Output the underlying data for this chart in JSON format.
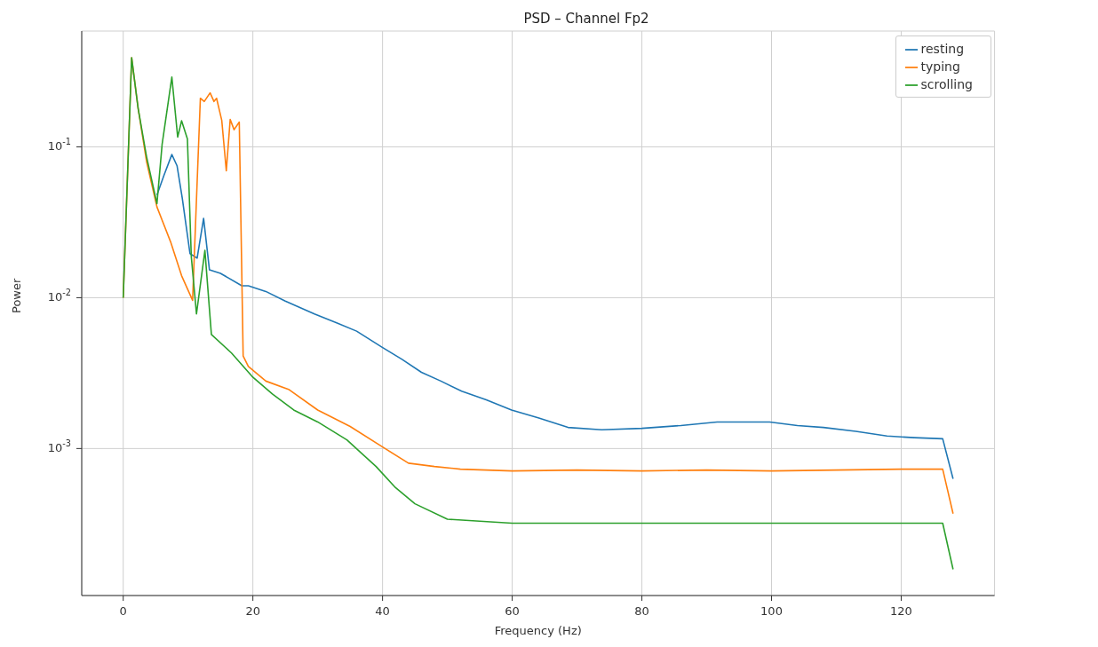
{
  "chart_data": {
    "type": "line",
    "title": "PSD – Channel Fp2",
    "xlabel": "Frequency (Hz)",
    "ylabel": "Power",
    "log": "y",
    "grid": true,
    "legend": "top right",
    "xlim": [
      -6.4,
      134.4
    ],
    "xticks": [
      0,
      20,
      40,
      60,
      80,
      100,
      120
    ],
    "ylim": [
      0.000106,
      0.586
    ],
    "yticks": [
      {
        "value": 0.001,
        "label": "10$^{-3}$"
      },
      {
        "value": 0.01,
        "label": "10$^{-2}$"
      },
      {
        "value": 0.1,
        "label": "10$^{-1}$"
      }
    ],
    "series": [
      {
        "name": "resting",
        "color": "#1f77b4",
        "x": [
          5.2,
          6.3,
          7.5,
          8.3,
          9.1,
          10.3,
          11.4,
          12.4,
          13.3,
          15,
          18.3,
          19.3,
          22,
          25,
          29.5,
          33,
          36,
          39.9,
          43,
          46,
          49,
          52.2,
          56,
          59.9,
          64,
          68.6,
          73.8,
          80,
          86,
          91.6,
          96,
          99.7,
          104,
          108,
          113,
          117.8,
          122,
          126.4,
          128
        ],
        "values": [
          0.048,
          0.065,
          0.089,
          0.075,
          0.046,
          0.0196,
          0.0183,
          0.0336,
          0.0153,
          0.0145,
          0.012,
          0.012,
          0.011,
          0.0095,
          0.0078,
          0.0068,
          0.006,
          0.0047,
          0.0039,
          0.0032,
          0.0028,
          0.0024,
          0.0021,
          0.0018,
          0.0016,
          0.00138,
          0.00133,
          0.00136,
          0.00142,
          0.0015,
          0.0015,
          0.0015,
          0.00142,
          0.00138,
          0.0013,
          0.00121,
          0.00118,
          0.00116,
          0.00063
        ]
      },
      {
        "name": "typing",
        "color": "#ff7f0e",
        "x": [
          0,
          1.3,
          2.3,
          3.6,
          5.2,
          7.3,
          9,
          10.7,
          11.9,
          12.5,
          13.4,
          14,
          14.4,
          15.2,
          15.9,
          16.5,
          17.1,
          17.9,
          18.5,
          19.3,
          22,
          25.5,
          30,
          35,
          39.9,
          44,
          48,
          52,
          60,
          70,
          80,
          90,
          100,
          110,
          120,
          126.4,
          128
        ],
        "values": [
          0.01,
          0.39,
          0.18,
          0.08,
          0.04,
          0.0235,
          0.014,
          0.0096,
          0.21,
          0.2,
          0.228,
          0.2,
          0.21,
          0.15,
          0.0695,
          0.152,
          0.13,
          0.146,
          0.0041,
          0.0035,
          0.0028,
          0.00247,
          0.0018,
          0.0014,
          0.00103,
          0.0008,
          0.00076,
          0.00073,
          0.00071,
          0.00072,
          0.00071,
          0.00072,
          0.00071,
          0.00072,
          0.00073,
          0.00073,
          0.00037
        ]
      },
      {
        "name": "scrolling",
        "color": "#2ca02c",
        "x": [
          0,
          1.3,
          2.3,
          3.6,
          5.2,
          6.0,
          7.5,
          8.4,
          9.0,
          9.9,
          10.5,
          11.3,
          12.6,
          13.6,
          16.7,
          19.9,
          23,
          26.3,
          30,
          34.5,
          39,
          42,
          45,
          50,
          55,
          60,
          70,
          80,
          90,
          100,
          110,
          120,
          126.4,
          128
        ],
        "values": [
          0.01,
          0.39,
          0.18,
          0.086,
          0.042,
          0.104,
          0.29,
          0.116,
          0.149,
          0.113,
          0.0187,
          0.0078,
          0.0206,
          0.0057,
          0.0043,
          0.003,
          0.0023,
          0.0018,
          0.0015,
          0.00114,
          0.00076,
          0.00055,
          0.00043,
          0.00034,
          0.00033,
          0.00032,
          0.00032,
          0.00032,
          0.00032,
          0.00032,
          0.00032,
          0.00032,
          0.00032,
          0.000158
        ]
      }
    ]
  }
}
